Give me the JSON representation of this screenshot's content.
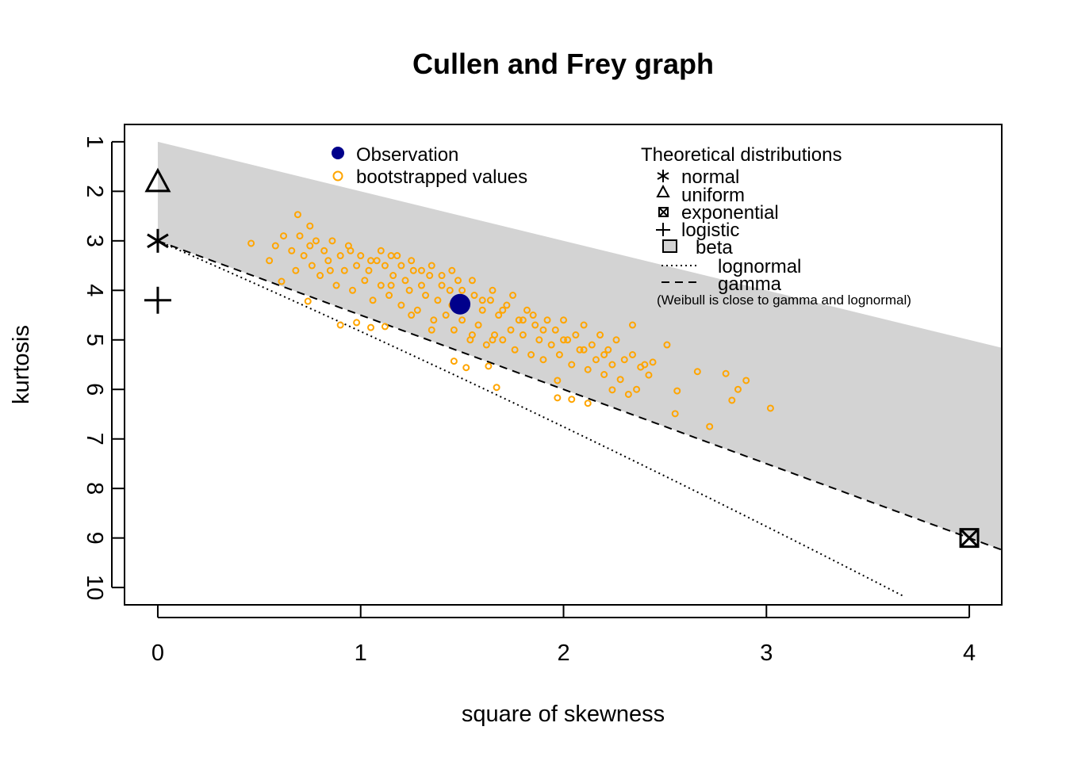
{
  "chart_data": {
    "type": "scatter",
    "title": "Cullen and Frey graph",
    "xlabel": "square of skewness",
    "ylabel": "kurtosis",
    "xlim": [
      -0.164,
      4.16
    ],
    "ylim": [
      10.35,
      0.65
    ],
    "xticks": [
      "0",
      "1",
      "2",
      "3",
      "4"
    ],
    "yticks": [
      "1",
      "2",
      "3",
      "4",
      "5",
      "6",
      "7",
      "8",
      "9",
      "10"
    ],
    "colors": {
      "observation": "#00008B",
      "bootstrap": "#FFA500",
      "beta": "#D3D3D3"
    },
    "legend1": {
      "observation": "Observation",
      "bootstrap": "bootstrapped values"
    },
    "legend2": {
      "title": "Theoretical distributions",
      "normal": "normal",
      "uniform": "uniform",
      "exponential": "exponential",
      "logistic": "logistic",
      "beta": "beta",
      "lognormal": "lognormal",
      "gamma": "gamma",
      "note": "(Weibull is close to gamma and lognormal)"
    },
    "observation": [
      1.49,
      4.28
    ],
    "theoretical": {
      "normal": [
        0,
        3
      ],
      "uniform": [
        0,
        1.8
      ],
      "exponential": [
        4,
        9
      ],
      "logistic": [
        0,
        4.2
      ]
    },
    "bootstrap": [
      [
        0.46,
        3.05
      ],
      [
        0.61,
        3.82
      ],
      [
        0.74,
        4.22
      ],
      [
        0.9,
        4.7
      ],
      [
        1.05,
        4.75
      ],
      [
        0.98,
        4.65
      ],
      [
        1.12,
        4.73
      ],
      [
        1.67,
        5.96
      ],
      [
        1.97,
        5.82
      ],
      [
        1.97,
        6.17
      ],
      [
        2.04,
        6.2
      ],
      [
        2.12,
        6.28
      ],
      [
        2.24,
        6.01
      ],
      [
        2.34,
        4.7
      ],
      [
        2.51,
        5.1
      ],
      [
        2.66,
        5.64
      ],
      [
        2.56,
        6.03
      ],
      [
        2.55,
        6.49
      ],
      [
        2.72,
        6.75
      ],
      [
        2.8,
        5.68
      ],
      [
        2.9,
        5.82
      ],
      [
        2.86,
        6.0
      ],
      [
        2.83,
        6.22
      ],
      [
        3.02,
        6.38
      ],
      [
        0.69,
        2.47
      ],
      [
        0.75,
        2.7
      ],
      [
        1.63,
        5.53
      ],
      [
        1.52,
        5.56
      ],
      [
        1.46,
        5.43
      ],
      [
        2.42,
        5.71
      ],
      [
        2.38,
        5.55
      ],
      [
        0.55,
        3.4
      ],
      [
        0.58,
        3.1
      ],
      [
        0.62,
        2.9
      ],
      [
        0.66,
        3.2
      ],
      [
        0.68,
        3.6
      ],
      [
        0.7,
        2.9
      ],
      [
        0.72,
        3.3
      ],
      [
        0.76,
        3.5
      ],
      [
        0.78,
        3.0
      ],
      [
        0.8,
        3.7
      ],
      [
        0.82,
        3.2
      ],
      [
        0.84,
        3.4
      ],
      [
        0.86,
        3.0
      ],
      [
        0.88,
        3.9
      ],
      [
        0.9,
        3.3
      ],
      [
        0.92,
        3.6
      ],
      [
        0.94,
        3.1
      ],
      [
        0.96,
        4.0
      ],
      [
        0.98,
        3.5
      ],
      [
        1.0,
        3.3
      ],
      [
        1.02,
        3.8
      ],
      [
        1.04,
        3.6
      ],
      [
        1.06,
        4.2
      ],
      [
        1.08,
        3.4
      ],
      [
        1.1,
        3.9
      ],
      [
        1.12,
        3.5
      ],
      [
        1.14,
        4.1
      ],
      [
        1.16,
        3.7
      ],
      [
        1.18,
        3.3
      ],
      [
        1.2,
        4.3
      ],
      [
        1.22,
        3.8
      ],
      [
        1.24,
        4.0
      ],
      [
        1.26,
        3.6
      ],
      [
        1.28,
        4.4
      ],
      [
        1.3,
        3.9
      ],
      [
        1.32,
        4.1
      ],
      [
        1.34,
        3.7
      ],
      [
        1.36,
        4.6
      ],
      [
        1.38,
        4.2
      ],
      [
        1.4,
        3.9
      ],
      [
        1.42,
        4.5
      ],
      [
        1.44,
        4.0
      ],
      [
        1.46,
        4.8
      ],
      [
        1.48,
        3.8
      ],
      [
        1.5,
        4.6
      ],
      [
        1.52,
        4.3
      ],
      [
        1.54,
        5.0
      ],
      [
        1.56,
        4.1
      ],
      [
        1.58,
        4.7
      ],
      [
        1.6,
        4.4
      ],
      [
        1.62,
        5.1
      ],
      [
        1.64,
        4.2
      ],
      [
        1.66,
        4.9
      ],
      [
        1.68,
        4.5
      ],
      [
        1.7,
        5.0
      ],
      [
        1.72,
        4.3
      ],
      [
        1.74,
        4.8
      ],
      [
        1.76,
        5.2
      ],
      [
        1.78,
        4.6
      ],
      [
        1.8,
        4.9
      ],
      [
        1.82,
        4.4
      ],
      [
        1.84,
        5.3
      ],
      [
        1.86,
        4.7
      ],
      [
        1.88,
        5.0
      ],
      [
        1.9,
        5.4
      ],
      [
        1.92,
        4.6
      ],
      [
        1.94,
        5.1
      ],
      [
        1.96,
        4.8
      ],
      [
        1.98,
        5.3
      ],
      [
        2.0,
        4.6
      ],
      [
        2.02,
        5.0
      ],
      [
        2.04,
        5.5
      ],
      [
        2.06,
        4.9
      ],
      [
        2.08,
        5.2
      ],
      [
        2.1,
        4.7
      ],
      [
        2.12,
        5.6
      ],
      [
        2.14,
        5.1
      ],
      [
        2.16,
        5.4
      ],
      [
        2.18,
        4.9
      ],
      [
        2.2,
        5.7
      ],
      [
        2.22,
        5.2
      ],
      [
        2.24,
        5.5
      ],
      [
        2.26,
        5.0
      ],
      [
        2.28,
        5.8
      ],
      [
        2.3,
        5.4
      ],
      [
        2.32,
        6.1
      ],
      [
        2.34,
        5.3
      ],
      [
        2.36,
        6.0
      ],
      [
        2.4,
        5.5
      ],
      [
        2.44,
        5.45
      ],
      [
        1.1,
        3.2
      ],
      [
        1.15,
        3.3
      ],
      [
        1.2,
        3.5
      ],
      [
        1.25,
        3.4
      ],
      [
        1.35,
        3.5
      ],
      [
        1.45,
        3.6
      ],
      [
        1.55,
        3.8
      ],
      [
        1.65,
        4.0
      ],
      [
        1.75,
        4.1
      ],
      [
        1.85,
        4.5
      ],
      [
        1.25,
        4.5
      ],
      [
        1.35,
        4.8
      ],
      [
        1.45,
        4.3
      ],
      [
        1.55,
        4.9
      ],
      [
        1.65,
        5.0
      ],
      [
        1.15,
        3.9
      ],
      [
        1.05,
        3.4
      ],
      [
        0.95,
        3.2
      ],
      [
        0.85,
        3.6
      ],
      [
        0.75,
        3.1
      ],
      [
        1.3,
        3.6
      ],
      [
        1.4,
        3.7
      ],
      [
        1.5,
        4.0
      ],
      [
        1.6,
        4.2
      ],
      [
        1.7,
        4.4
      ],
      [
        1.8,
        4.6
      ],
      [
        1.9,
        4.8
      ],
      [
        2.0,
        5.0
      ],
      [
        2.1,
        5.2
      ],
      [
        2.2,
        5.3
      ]
    ]
  }
}
